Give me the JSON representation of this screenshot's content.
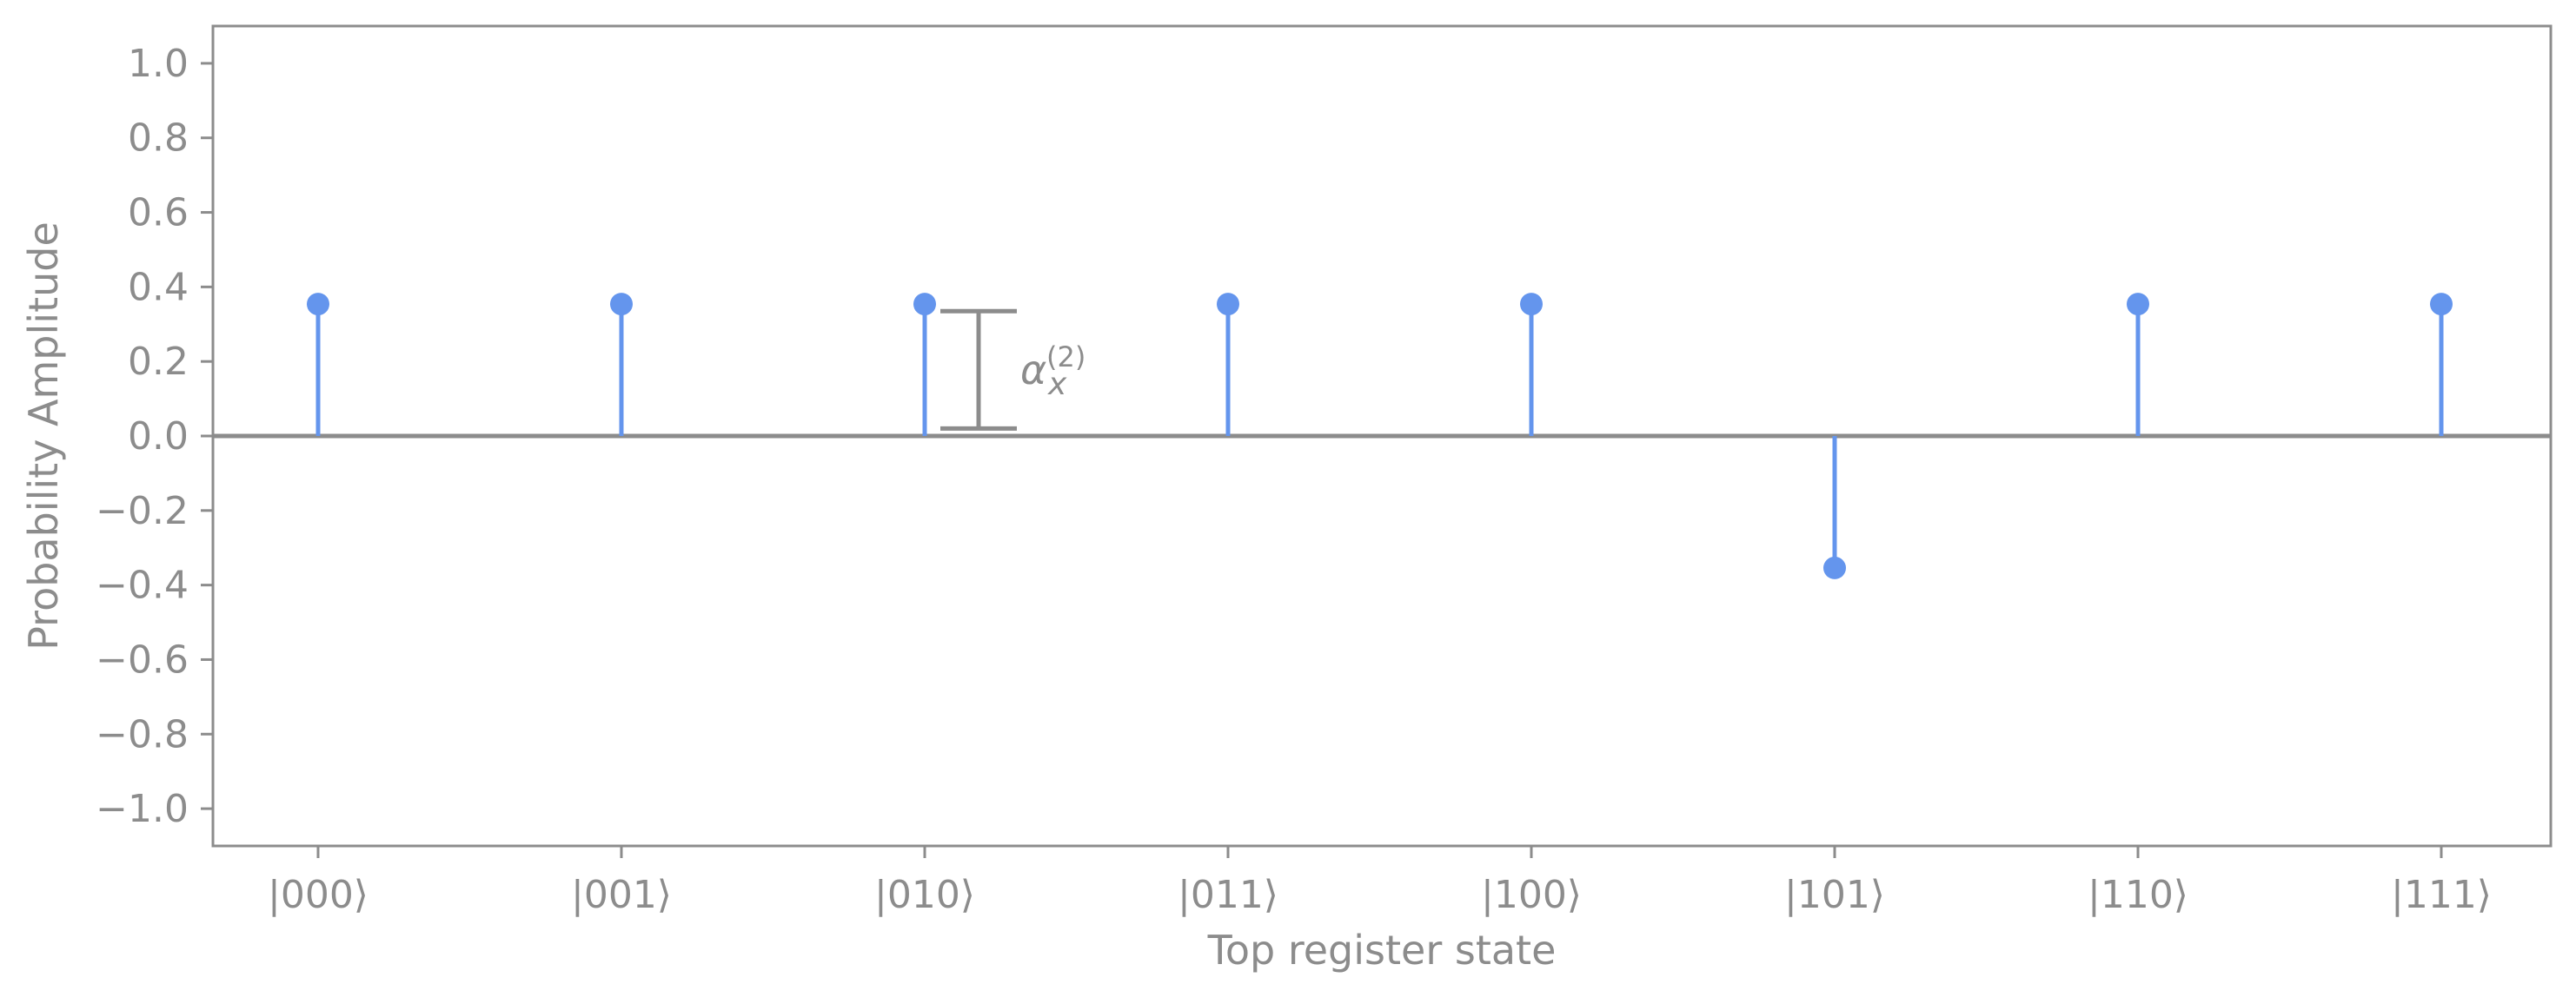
{
  "chart_data": {
    "type": "stem",
    "xlabel": "Top register state",
    "ylabel": "Probability Amplitude",
    "categories": [
      "|000⟩",
      "|001⟩",
      "|010⟩",
      "|011⟩",
      "|100⟩",
      "|101⟩",
      "|110⟩",
      "|111⟩"
    ],
    "series": [
      {
        "values": [
          0.354,
          0.354,
          0.354,
          0.354,
          0.354,
          -0.354,
          0.354,
          0.354
        ]
      }
    ],
    "ylim": [
      -1.1,
      1.1
    ],
    "yticks": [
      1.0,
      0.8,
      0.6,
      0.4,
      0.2,
      0.0,
      -0.2,
      -0.4,
      -0.6,
      -0.8,
      -1.0
    ],
    "ytick_labels": [
      "1.0",
      "0.8",
      "0.6",
      "0.4",
      "0.2",
      "0.0",
      "−0.2",
      "−0.4",
      "−0.6",
      "−0.8",
      "−1.0"
    ],
    "grid": false,
    "legend": "none",
    "colors": {
      "stem": "#6495ed",
      "axis": "#8c8c8c",
      "baseline": "#8c8c8c"
    },
    "annotation": {
      "symbol": "α",
      "superscript": "(2)",
      "subscript": "x",
      "bracket_from": 0.02,
      "bracket_to": 0.335,
      "near_category_index": 2
    }
  }
}
